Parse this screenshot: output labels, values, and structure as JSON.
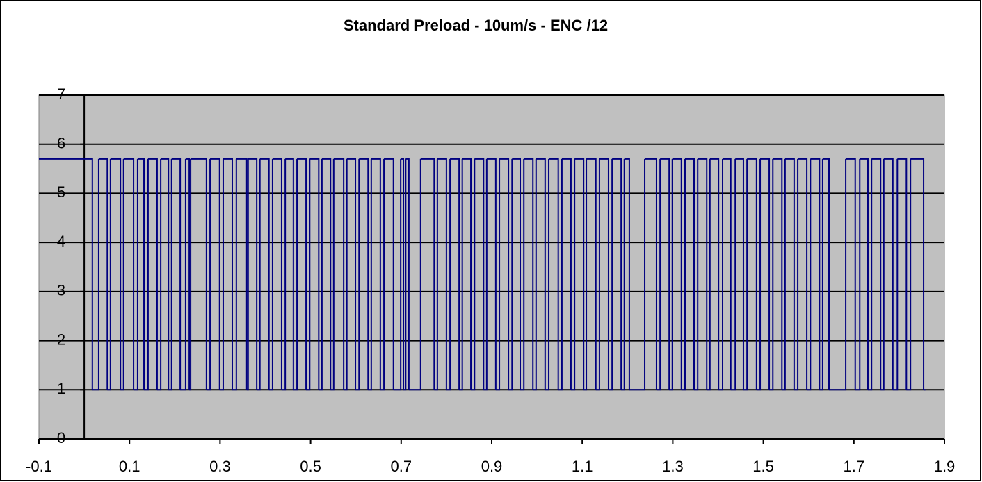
{
  "chart_data": {
    "type": "step",
    "step": "post",
    "title": "Standard Preload - 10um/s - ENC /12",
    "color": "#000080",
    "plot_background": "#c0c0c0",
    "grid": true,
    "xlim": [
      -0.1,
      1.9
    ],
    "xticks": [
      -0.1,
      0.1,
      0.3,
      0.5,
      0.7,
      0.9,
      1.1,
      1.3,
      1.5,
      1.7,
      1.9
    ],
    "ylim": [
      0,
      7
    ],
    "yticks": [
      0,
      1,
      2,
      3,
      4,
      5,
      6,
      7
    ],
    "x": [
      -0.1,
      0.018,
      0.032,
      0.051,
      0.058,
      0.08,
      0.087,
      0.109,
      0.118,
      0.132,
      0.141,
      0.161,
      0.169,
      0.186,
      0.193,
      0.212,
      0.224,
      0.232,
      0.235,
      0.27,
      0.278,
      0.299,
      0.307,
      0.327,
      0.336,
      0.359,
      0.362,
      0.381,
      0.388,
      0.408,
      0.416,
      0.436,
      0.444,
      0.462,
      0.47,
      0.49,
      0.498,
      0.518,
      0.525,
      0.544,
      0.551,
      0.573,
      0.58,
      0.599,
      0.607,
      0.627,
      0.634,
      0.654,
      0.662,
      0.683,
      0.699,
      0.705,
      0.71,
      0.717,
      0.743,
      0.773,
      0.78,
      0.8,
      0.808,
      0.828,
      0.835,
      0.854,
      0.862,
      0.882,
      0.889,
      0.909,
      0.917,
      0.937,
      0.945,
      0.963,
      0.971,
      0.991,
      0.998,
      1.018,
      1.026,
      1.047,
      1.055,
      1.075,
      1.083,
      1.103,
      1.109,
      1.13,
      1.138,
      1.158,
      1.166,
      1.186,
      1.193,
      1.204,
      1.238,
      1.264,
      1.272,
      1.292,
      1.299,
      1.319,
      1.327,
      1.347,
      1.355,
      1.375,
      1.382,
      1.401,
      1.41,
      1.428,
      1.438,
      1.456,
      1.464,
      1.485,
      1.493,
      1.513,
      1.521,
      1.541,
      1.548,
      1.568,
      1.576,
      1.596,
      1.604,
      1.624,
      1.631,
      1.645,
      1.682,
      1.703,
      1.713,
      1.731,
      1.739,
      1.759,
      1.766,
      1.786,
      1.796,
      1.816,
      1.825,
      1.854,
      1.858
    ],
    "values": [
      5.7,
      1,
      5.7,
      1,
      5.7,
      1,
      5.7,
      1,
      5.7,
      1,
      5.7,
      1,
      5.7,
      1,
      5.7,
      1,
      5.7,
      1,
      5.7,
      1,
      5.7,
      1,
      5.7,
      1,
      5.7,
      1,
      5.7,
      1,
      5.7,
      1,
      5.7,
      1,
      5.7,
      1,
      5.7,
      1,
      5.7,
      1,
      5.7,
      1,
      5.7,
      1,
      5.7,
      1,
      5.7,
      1,
      5.7,
      1,
      5.7,
      1,
      5.7,
      1,
      5.7,
      1,
      5.7,
      1,
      5.7,
      1,
      5.7,
      1,
      5.7,
      1,
      5.7,
      1,
      5.7,
      1,
      5.7,
      1,
      5.7,
      1,
      5.7,
      1,
      5.7,
      1,
      5.7,
      1,
      5.7,
      1,
      5.7,
      1,
      5.7,
      1,
      5.7,
      1,
      5.7,
      1,
      5.7,
      1,
      5.7,
      1,
      5.7,
      1,
      5.7,
      1,
      5.7,
      1,
      5.7,
      1,
      5.7,
      1,
      5.7,
      1,
      5.7,
      1,
      5.7,
      1,
      5.7,
      1,
      5.7,
      1,
      5.7,
      1,
      5.7,
      1,
      5.7,
      1,
      5.7,
      1,
      5.7,
      1,
      5.7,
      1,
      5.7,
      1,
      5.7,
      1,
      5.7,
      1,
      5.7,
      1,
      1
    ]
  }
}
